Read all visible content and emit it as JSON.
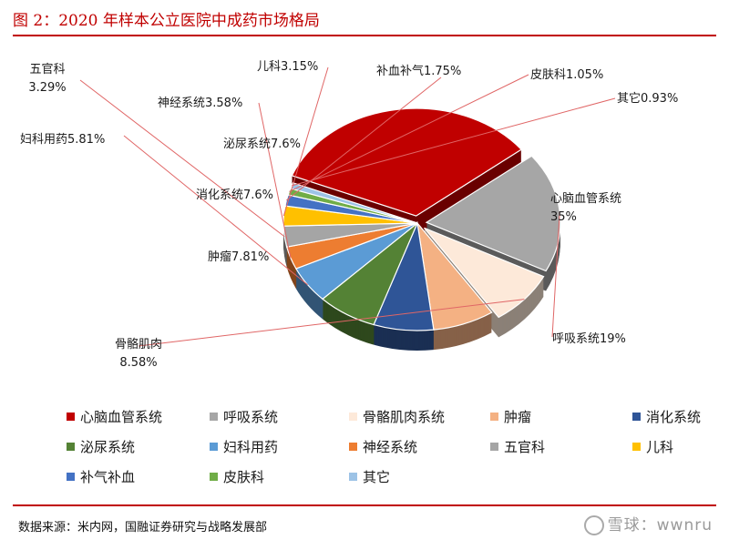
{
  "title": "图 2：2020 年样本公立医院中成药市场格局",
  "source": "数据来源：米内网，国融证券研究与战略发展部",
  "watermark": "雪球：wwnru",
  "chart_data": {
    "type": "pie",
    "title": "",
    "units": "%",
    "series": [
      {
        "name": "心脑血管系统",
        "value": 35,
        "label": [
          "心脑血管系统",
          "35%"
        ],
        "color": "#c00000"
      },
      {
        "name": "呼吸系统",
        "value": 19,
        "label": [
          "呼吸系统19%"
        ],
        "color": "#a6a6a6"
      },
      {
        "name": "骨骼肌肉系统",
        "value": 8.58,
        "label": [
          "骨骼肌肉",
          "8.58%"
        ],
        "color": "#fde9d9"
      },
      {
        "name": "肿瘤",
        "value": 7.81,
        "label": [
          "肿瘤7.81%"
        ],
        "color": "#f4b183"
      },
      {
        "name": "消化系统",
        "value": 7.6,
        "label": [
          "消化系统7.6%"
        ],
        "color": "#2f5597"
      },
      {
        "name": "泌尿系统",
        "value": 7.6,
        "label": [
          "泌尿系统7.6%"
        ],
        "color": "#548235"
      },
      {
        "name": "妇科用药",
        "value": 5.81,
        "label": [
          "妇科用药5.81%"
        ],
        "color": "#5b9bd5"
      },
      {
        "name": "神经系统",
        "value": 3.58,
        "label": [
          "神经系统3.58%"
        ],
        "color": "#ed7d31"
      },
      {
        "name": "五官科",
        "value": 3.29,
        "label": [
          "五官科",
          "3.29%"
        ],
        "color": "#a5a5a5"
      },
      {
        "name": "儿科",
        "value": 3.15,
        "label": [
          "儿科3.15%"
        ],
        "color": "#ffc000"
      },
      {
        "name": "补气补血",
        "value": 1.75,
        "label": [
          "补血补气1.75%"
        ],
        "color": "#4472c4"
      },
      {
        "name": "皮肤科",
        "value": 1.05,
        "label": [
          "皮肤科1.05%"
        ],
        "color": "#70ad47"
      },
      {
        "name": "其它",
        "value": 0.93,
        "label": [
          "其它0.93%"
        ],
        "color": "#9dc3e6"
      }
    ],
    "legend": {
      "placement": "bottom",
      "items": [
        {
          "name": "心脑血管系统",
          "color": "#c00000"
        },
        {
          "name": "呼吸系统",
          "color": "#a6a6a6"
        },
        {
          "name": "骨骼肌肉系统",
          "color": "#fde9d9"
        },
        {
          "name": "肿瘤",
          "color": "#f4b183"
        },
        {
          "name": "消化系统",
          "color": "#2f5597"
        },
        {
          "name": "泌尿系统",
          "color": "#548235"
        },
        {
          "name": "妇科用药",
          "color": "#5b9bd5"
        },
        {
          "name": "神经系统",
          "color": "#ed7d31"
        },
        {
          "name": "五官科",
          "color": "#a5a5a5"
        },
        {
          "name": "儿科",
          "color": "#ffc000"
        },
        {
          "name": "补气补血",
          "color": "#4472c4"
        },
        {
          "name": "皮肤科",
          "color": "#70ad47"
        },
        {
          "name": "其它",
          "color": "#9dc3e6"
        }
      ]
    }
  }
}
